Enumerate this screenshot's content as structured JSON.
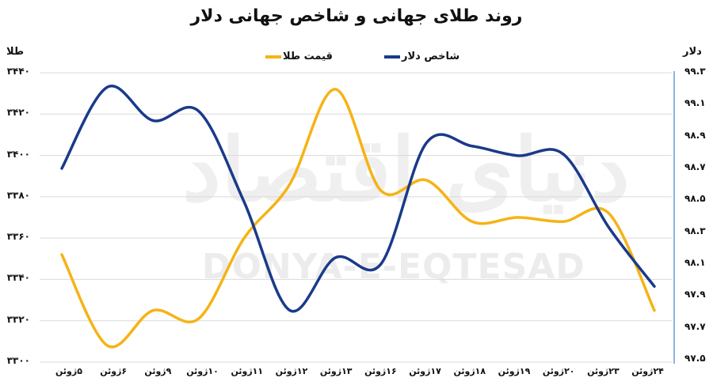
{
  "title": "روند طلای جهانی و شاخص جهانی دلار",
  "left_axis_title": "طلا",
  "right_axis_title": "دلار",
  "legend": [
    {
      "label": "قیمت طلا",
      "color": "#F5B316"
    },
    {
      "label": "شاخص دلار",
      "color": "#1A3A8A"
    }
  ],
  "watermark": {
    "fa": "دنیای اقتصاد",
    "en": "DONYA-E-EQTESAD"
  },
  "left_ticks": [
    "۳۴۴۰",
    "۳۴۲۰",
    "۳۴۰۰",
    "۳۳۸۰",
    "۳۳۶۰",
    "۳۳۴۰",
    "۳۳۲۰",
    "۳۳۰۰"
  ],
  "right_ticks": [
    "۹۹.۳",
    "۹۹.۱",
    "۹۸.۹",
    "۹۸.۷",
    "۹۸.۵",
    "۹۸.۳",
    "۹۸.۱",
    "۹۷.۹",
    "۹۷.۷",
    "۹۷.۵"
  ],
  "x_labels": [
    "۵ژوئن",
    "۶ژوئن",
    "۹ژوئن",
    "۱۰ژوئن",
    "۱۱ژوئن",
    "۱۲ژوئن",
    "۱۳ژوئن",
    "۱۶ژوئن",
    "۱۷ژوئن",
    "۱۸ژوئن",
    "۱۹ژوئن",
    "۲۰ژوئن",
    "۲۳ژوئن",
    "۲۴ژوئن"
  ],
  "colors": {
    "gold": "#F5B316",
    "dollar": "#1A3A8A",
    "grid": "#D9D9D9",
    "right_axis_line": "#8DB4E2"
  },
  "chart_data": {
    "type": "line",
    "title": "روند طلای جهانی و شاخص جهانی دلار",
    "categories": [
      "5 June",
      "6 June",
      "9 June",
      "10 June",
      "11 June",
      "12 June",
      "13 June",
      "16 June",
      "17 June",
      "18 June",
      "19 June",
      "20 June",
      "23 June",
      "24 June"
    ],
    "series": [
      {
        "name": "قیمت طلا",
        "axis": "left",
        "color": "#F5B316",
        "values": [
          3352,
          3308,
          3325,
          3321,
          3360,
          3386,
          3432,
          3383,
          3388,
          3368,
          3370,
          3368,
          3372,
          3325
        ]
      },
      {
        "name": "شاخص دلار",
        "axis": "right",
        "color": "#1A3A8A",
        "values": [
          98.7,
          99.21,
          99.0,
          99.06,
          98.49,
          97.81,
          98.14,
          98.1,
          98.86,
          98.84,
          98.78,
          98.79,
          98.33,
          97.96
        ]
      }
    ],
    "ylabel_left": "طلا",
    "ylim_left": [
      3300,
      3440
    ],
    "yticks_left_step": 20,
    "ylabel_right": "دلار",
    "ylim_right": [
      97.5,
      99.3
    ],
    "yticks_right_step": 0.2,
    "xlabel": "",
    "grid": true,
    "legend_position": "top",
    "smooth": true
  }
}
